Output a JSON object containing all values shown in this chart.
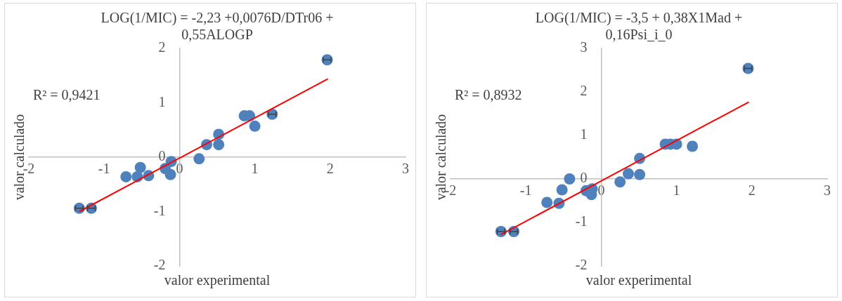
{
  "chart_data": [
    {
      "type": "scatter",
      "title": "LOG(1/MIC) = -2,23 +0,0076D/DTr06 + 0,55ALOGP",
      "xlabel": "valor experimental",
      "ylabel": "valor calculado",
      "annotations": [
        "R² = 0,9421"
      ],
      "legend": false,
      "grid": false,
      "marker": "circle",
      "xlim": [
        -2,
        3
      ],
      "xticks": [
        -2,
        -1,
        0,
        1,
        2,
        3
      ],
      "ylim": [
        -2,
        2
      ],
      "yticks": [
        -2,
        -1,
        0,
        1,
        2
      ],
      "series": [
        {
          "type": "scatter",
          "color": "#4f81bd",
          "x": [
            -1.33,
            -1.17,
            -0.71,
            -0.56,
            -0.52,
            -0.41,
            -0.19,
            -0.11,
            -0.12,
            0.26,
            0.36,
            0.52,
            0.52,
            0.86,
            0.93,
            1.0,
            1.23,
            1.96
          ],
          "values": [
            -0.94,
            -0.94,
            -0.36,
            -0.36,
            -0.19,
            -0.34,
            -0.21,
            -0.08,
            -0.32,
            -0.03,
            0.23,
            0.42,
            0.23,
            0.76,
            0.76,
            0.57,
            0.79,
            1.79
          ],
          "xerrors": [
            0.05,
            0.05,
            null,
            null,
            null,
            null,
            null,
            null,
            null,
            null,
            null,
            null,
            null,
            null,
            null,
            null,
            0.05,
            0.05
          ]
        },
        {
          "type": "line",
          "color": "#ff0000",
          "marker": "none",
          "x": [
            -1.33,
            1.97
          ],
          "values": [
            -1.0,
            1.44
          ]
        }
      ]
    },
    {
      "type": "scatter",
      "title": "LOG(1/MIC) = -3,5 + 0,38X1Mad + 0,16Psi_i_0",
      "xlabel": "valor experimental",
      "ylabel": "valor calculado",
      "annotations": [
        "R² = 0,8932"
      ],
      "legend": false,
      "grid": false,
      "marker": "circle",
      "xlim": [
        -2,
        3
      ],
      "xticks": [
        -2,
        -1,
        0,
        1,
        2,
        3
      ],
      "ylim": [
        -2,
        3
      ],
      "yticks": [
        -2,
        -1,
        0,
        1,
        2,
        3
      ],
      "series": [
        {
          "type": "scatter",
          "color": "#4f81bd",
          "x": [
            -1.33,
            -1.16,
            -0.72,
            -0.56,
            -0.52,
            -0.42,
            -0.2,
            -0.12,
            -0.13,
            0.25,
            0.36,
            0.51,
            0.51,
            0.85,
            0.92,
            1.0,
            1.21,
            1.95
          ],
          "values": [
            -1.21,
            -1.21,
            -0.54,
            -0.56,
            -0.25,
            0.0,
            -0.27,
            -0.23,
            -0.36,
            -0.07,
            0.12,
            0.47,
            0.1,
            0.8,
            0.8,
            0.8,
            0.75,
            2.54
          ],
          "xerrors": [
            0.05,
            0.05,
            null,
            null,
            null,
            null,
            null,
            null,
            null,
            null,
            null,
            null,
            null,
            null,
            null,
            null,
            null,
            0.05
          ]
        },
        {
          "type": "line",
          "color": "#ff0000",
          "marker": "none",
          "x": [
            -1.33,
            1.96
          ],
          "values": [
            -1.28,
            1.77
          ]
        }
      ]
    }
  ]
}
